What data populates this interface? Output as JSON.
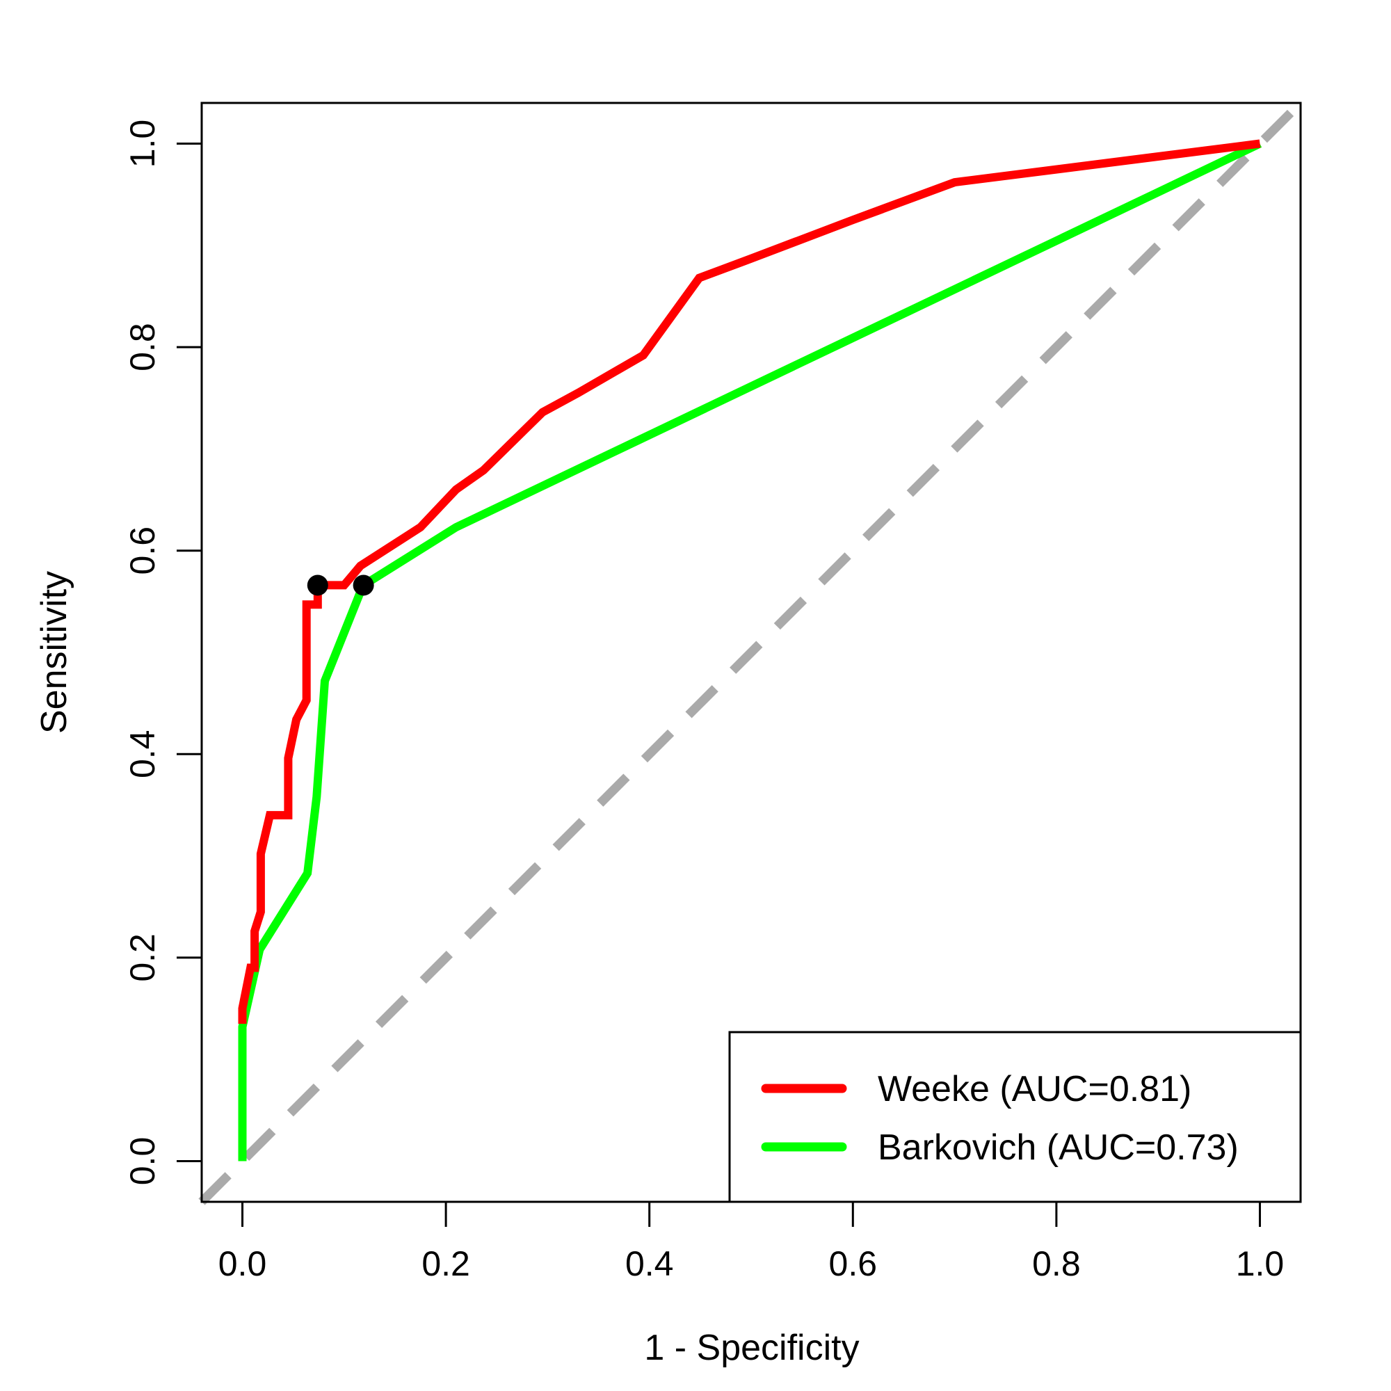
{
  "chart_data": {
    "type": "line",
    "title": "",
    "xlabel": "1 - Specificity",
    "ylabel": "Sensitivity",
    "xlim": [
      -0.04,
      1.04
    ],
    "ylim": [
      -0.04,
      1.04
    ],
    "xticks": [
      0.0,
      0.2,
      0.4,
      0.6,
      0.8,
      1.0
    ],
    "yticks": [
      0.0,
      0.2,
      0.4,
      0.6,
      0.8,
      1.0
    ],
    "xtick_labels": [
      "0.0",
      "0.2",
      "0.4",
      "0.6",
      "0.8",
      "1.0"
    ],
    "ytick_labels": [
      "0.0",
      "0.2",
      "0.4",
      "0.6",
      "0.8",
      "1.0"
    ],
    "legend_position": "bottom-right",
    "grid": false,
    "series": [
      {
        "name": "Weeke (AUC=0.81)",
        "color": "#ff0000",
        "x": [
          0.0,
          0.0,
          0.008,
          0.012,
          0.012,
          0.018,
          0.018,
          0.027,
          0.033,
          0.045,
          0.045,
          0.053,
          0.063,
          0.063,
          0.066,
          0.074,
          0.074,
          0.08,
          0.1,
          0.116,
          0.175,
          0.21,
          0.237,
          0.295,
          0.33,
          0.394,
          0.449,
          0.5,
          0.6,
          0.7,
          1.0
        ],
        "y": [
          0.135,
          0.15,
          0.19,
          0.19,
          0.226,
          0.245,
          0.302,
          0.34,
          0.34,
          0.34,
          0.396,
          0.434,
          0.453,
          0.547,
          0.547,
          0.547,
          0.566,
          0.566,
          0.566,
          0.585,
          0.623,
          0.66,
          0.679,
          0.736,
          0.755,
          0.792,
          0.868,
          0.887,
          0.925,
          0.962,
          1.0
        ],
        "optimal_point": [
          0.074,
          0.566
        ]
      },
      {
        "name": "Barkovich (AUC=0.73)",
        "color": "#00ff00",
        "x": [
          0.0,
          0.0,
          0.017,
          0.064,
          0.073,
          0.081,
          0.115,
          0.119,
          0.21,
          1.0
        ],
        "y": [
          0.0,
          0.132,
          0.208,
          0.283,
          0.358,
          0.472,
          0.557,
          0.566,
          0.623,
          1.0
        ],
        "optimal_point": [
          0.119,
          0.566
        ]
      }
    ],
    "reference_line": {
      "color": "#aaaaaa",
      "style": "dashed",
      "x": [
        -0.04,
        1.04
      ],
      "y": [
        -0.04,
        1.04
      ]
    },
    "optimal_point_color": "#000000"
  }
}
